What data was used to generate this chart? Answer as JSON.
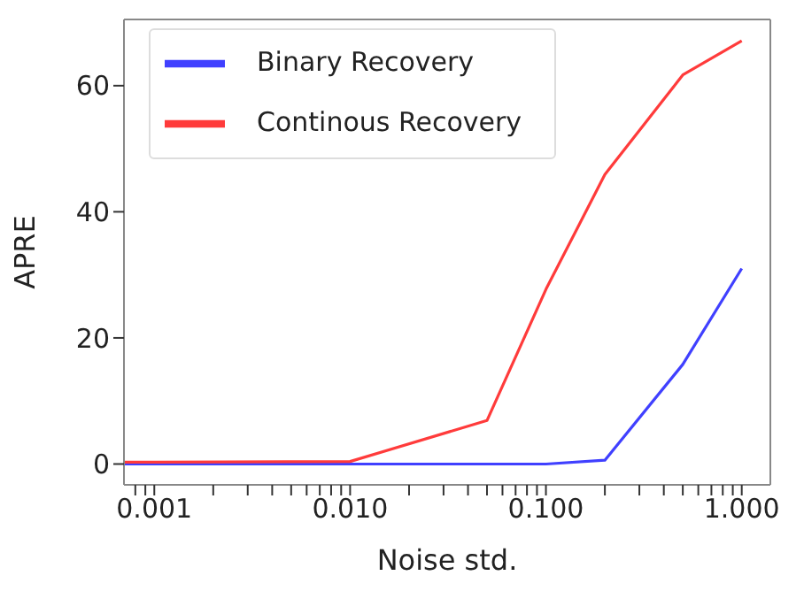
{
  "chart_data": {
    "type": "line",
    "xlabel": "Noise std.",
    "ylabel": "APRE",
    "x": [
      0.0007,
      0.001,
      0.01,
      0.05,
      0.1,
      0.2,
      0.5,
      1
    ],
    "series": [
      {
        "name": "Binary Recovery",
        "color": "#4040ff",
        "values": [
          0,
          0,
          0,
          0,
          0,
          0.6,
          15.8,
          31
        ]
      },
      {
        "name": "Continous Recovery",
        "color": "#ff3b3b",
        "values": [
          0.3,
          0.3,
          0.4,
          6.9,
          27.7,
          45.9,
          61.7,
          67.1
        ]
      }
    ],
    "log": "x",
    "xlim": [
      0.0007,
      1.4
    ],
    "ylim": [
      -3.3,
      70.5
    ],
    "xticks": [
      {
        "value": 0.0008,
        "label": null
      },
      {
        "value": 0.0009,
        "label": null
      },
      {
        "value": 0.001,
        "label": "0.001"
      },
      {
        "value": 0.002,
        "label": null
      },
      {
        "value": 0.003,
        "label": null
      },
      {
        "value": 0.004,
        "label": null
      },
      {
        "value": 0.005,
        "label": null
      },
      {
        "value": 0.006,
        "label": null
      },
      {
        "value": 0.007,
        "label": null
      },
      {
        "value": 0.008,
        "label": null
      },
      {
        "value": 0.009,
        "label": null
      },
      {
        "value": 0.01,
        "label": "0.010"
      },
      {
        "value": 0.02,
        "label": null
      },
      {
        "value": 0.03,
        "label": null
      },
      {
        "value": 0.04,
        "label": null
      },
      {
        "value": 0.05,
        "label": null
      },
      {
        "value": 0.06,
        "label": null
      },
      {
        "value": 0.07,
        "label": null
      },
      {
        "value": 0.08,
        "label": null
      },
      {
        "value": 0.09,
        "label": null
      },
      {
        "value": 0.1,
        "label": "0.100"
      },
      {
        "value": 0.2,
        "label": null
      },
      {
        "value": 0.3,
        "label": null
      },
      {
        "value": 0.4,
        "label": null
      },
      {
        "value": 0.5,
        "label": null
      },
      {
        "value": 0.6,
        "label": null
      },
      {
        "value": 0.7,
        "label": null
      },
      {
        "value": 0.8,
        "label": null
      },
      {
        "value": 0.9,
        "label": null
      },
      {
        "value": 1,
        "label": "1.000"
      }
    ],
    "yticks": [
      0,
      20,
      40,
      60
    ],
    "grid": false,
    "legend": "top left",
    "marker": "none",
    "line_style": "solid"
  }
}
